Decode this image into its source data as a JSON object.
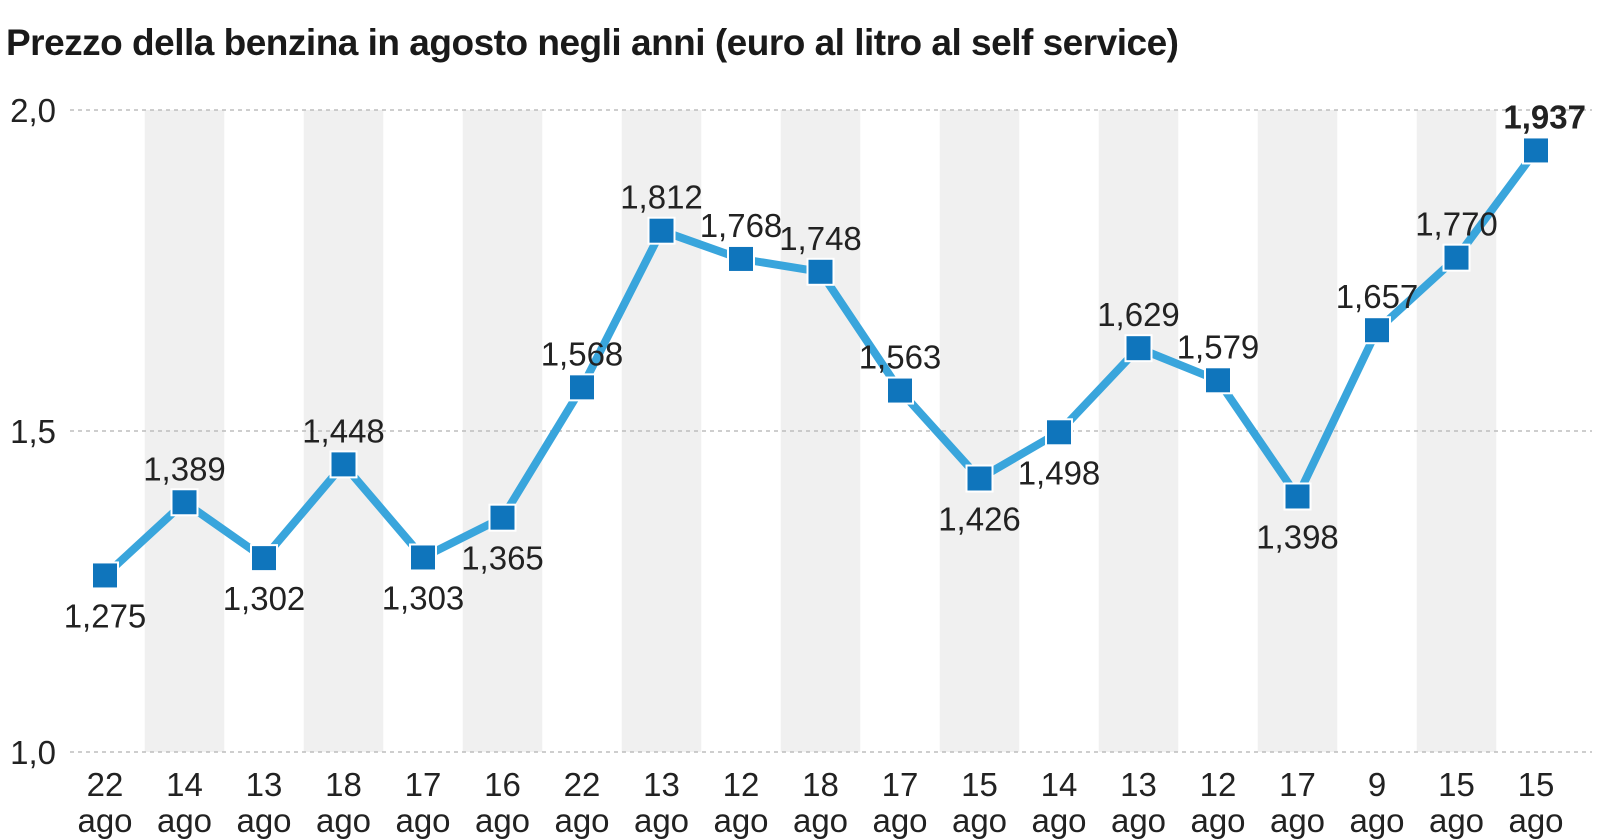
{
  "chart_data": {
    "type": "line",
    "title": "Prezzo della benzina in agosto negli anni (euro al litro al self service)",
    "xlabel": "",
    "ylabel": "",
    "categories": [
      [
        "22",
        "ago"
      ],
      [
        "14",
        "ago"
      ],
      [
        "13",
        "ago"
      ],
      [
        "18",
        "ago"
      ],
      [
        "17",
        "ago"
      ],
      [
        "16",
        "ago"
      ],
      [
        "22",
        "ago"
      ],
      [
        "13",
        "ago"
      ],
      [
        "12",
        "ago"
      ],
      [
        "18",
        "ago"
      ],
      [
        "17",
        "ago"
      ],
      [
        "15",
        "ago"
      ],
      [
        "14",
        "ago"
      ],
      [
        "13",
        "ago"
      ],
      [
        "12",
        "ago"
      ],
      [
        "17",
        "ago"
      ],
      [
        "9",
        "ago"
      ],
      [
        "15",
        "ago"
      ],
      [
        "15",
        "ago"
      ]
    ],
    "values": [
      1.275,
      1.389,
      1.302,
      1.448,
      1.303,
      1.365,
      1.568,
      1.812,
      1.768,
      1.748,
      1.563,
      1.426,
      1.498,
      1.629,
      1.579,
      1.398,
      1.657,
      1.77,
      1.937
    ],
    "value_labels": [
      "1,275",
      "1,389",
      "1,302",
      "1,448",
      "1,303",
      "1,365",
      "1,568",
      "1,812",
      "1,768",
      "1,748",
      "1,563",
      "1,426",
      "1,498",
      "1,629",
      "1,579",
      "1,398",
      "1,657",
      "1,770",
      "1,937"
    ],
    "label_positions": [
      "below",
      "above",
      "below",
      "above",
      "below",
      "below",
      "above",
      "above",
      "above",
      "above",
      "above",
      "below",
      "below",
      "above",
      "above",
      "below",
      "above",
      "above",
      "above"
    ],
    "highlight_last": true,
    "ylim": [
      1.0,
      2.0
    ],
    "yticks": [
      1.0,
      1.5,
      2.0
    ],
    "ytick_labels": [
      "1,0",
      "1,5",
      "2,0"
    ],
    "grid": true,
    "colors": {
      "line": "#39a5dc",
      "marker": "#0f75bc",
      "band": "#f0f0f0",
      "grid": "#bdbdbd"
    }
  }
}
